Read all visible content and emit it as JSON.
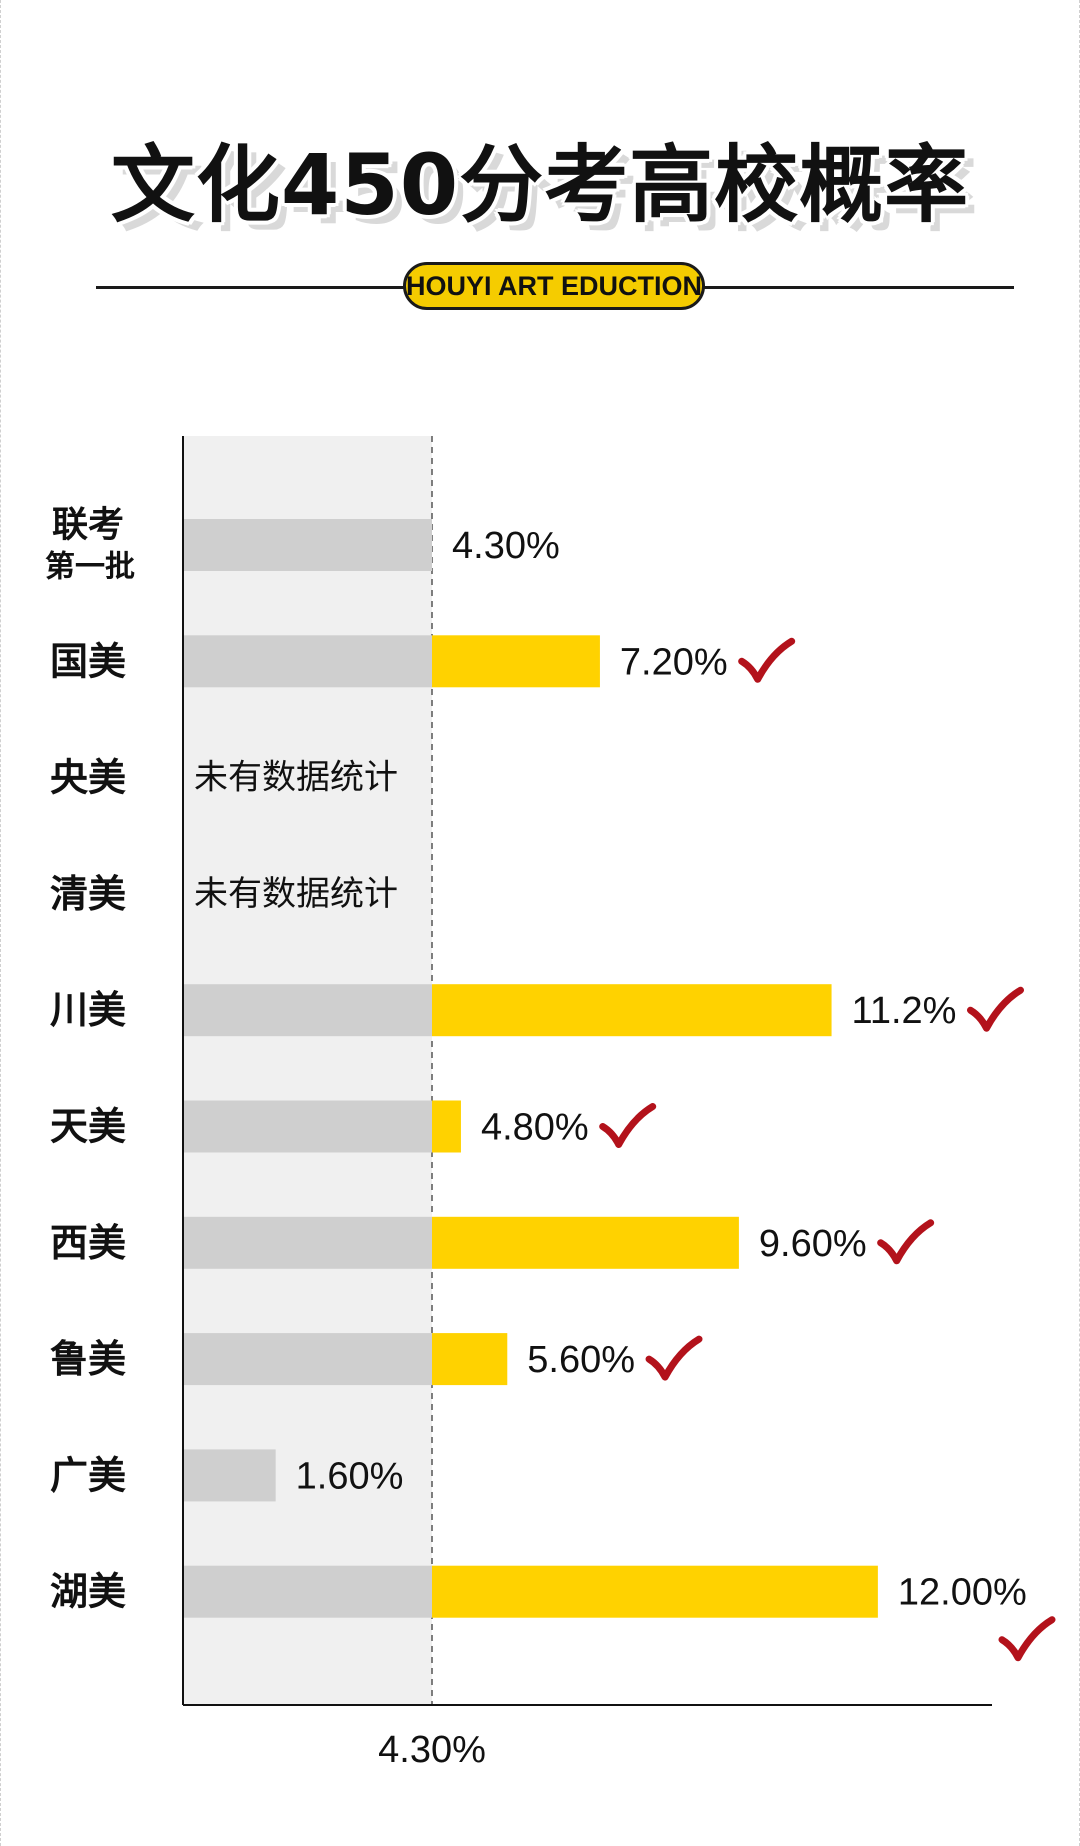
{
  "title": "文化450分考高校概率",
  "badge": "HOUYI ART EDUCTION",
  "colors": {
    "baseline_bar": "#cfcfcf",
    "excess_bar": "#ffd200",
    "check": "#b3121b",
    "band": "#f0f0f0"
  },
  "chart_data": {
    "type": "bar",
    "orientation": "horizontal",
    "reference": {
      "value": 4.3,
      "label": "4.30%"
    },
    "no_data_text": "未有数据统计",
    "categories": [
      {
        "label_lines": [
          "联考",
          "第一批"
        ],
        "value": 4.3,
        "label": "4.30%",
        "check": false
      },
      {
        "label_lines": [
          "国美"
        ],
        "value": 7.2,
        "label": "7.20%",
        "check": true
      },
      {
        "label_lines": [
          "央美"
        ],
        "value": null,
        "label": "",
        "check": false
      },
      {
        "label_lines": [
          "清美"
        ],
        "value": null,
        "label": "",
        "check": false
      },
      {
        "label_lines": [
          "川美"
        ],
        "value": 11.2,
        "label": "11.2%",
        "check": true
      },
      {
        "label_lines": [
          "天美"
        ],
        "value": 4.8,
        "label": "4.80%",
        "check": true
      },
      {
        "label_lines": [
          "西美"
        ],
        "value": 9.6,
        "label": "9.60%",
        "check": true
      },
      {
        "label_lines": [
          "鲁美"
        ],
        "value": 5.6,
        "label": "5.60%",
        "check": true
      },
      {
        "label_lines": [
          "广美"
        ],
        "value": 1.6,
        "label": "1.60%",
        "check": false
      },
      {
        "label_lines": [
          "湖美"
        ],
        "value": 12.0,
        "label": "12.00%",
        "check": true
      }
    ]
  }
}
